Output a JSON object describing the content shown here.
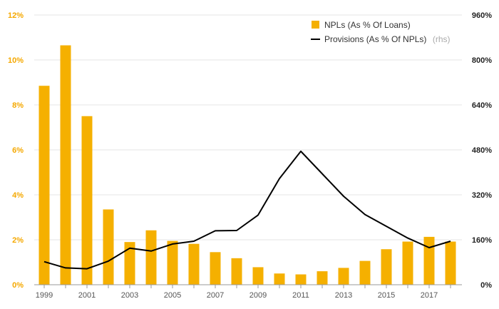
{
  "chart_data": {
    "type": "bar",
    "years": [
      1999,
      2000,
      2001,
      2002,
      2003,
      2004,
      2005,
      2006,
      2007,
      2008,
      2009,
      2010,
      2011,
      2012,
      2013,
      2014,
      2015,
      2016,
      2017,
      2018
    ],
    "x_tick_labels": [
      "1999",
      "2001",
      "2003",
      "2005",
      "2007",
      "2009",
      "2011",
      "2013",
      "2015",
      "2017"
    ],
    "series": [
      {
        "name": "NPLs (As % Of Loans)",
        "type": "bar",
        "axis": "left",
        "color": "#f5b000",
        "values": [
          8.85,
          10.65,
          7.5,
          3.35,
          1.9,
          2.42,
          1.95,
          1.82,
          1.45,
          1.18,
          0.78,
          0.5,
          0.46,
          0.6,
          0.75,
          1.06,
          1.58,
          1.92,
          2.13,
          1.92
        ]
      },
      {
        "name": "Provisions (As % Of NPLs)",
        "name_suffix": "(rhs)",
        "type": "line",
        "axis": "right",
        "color": "#000000",
        "values": [
          82,
          60,
          57,
          84,
          130,
          120,
          145,
          155,
          192,
          193,
          248,
          378,
          475,
          395,
          315,
          250,
          208,
          166,
          132,
          155
        ]
      }
    ],
    "y_left": {
      "ylim": [
        0,
        12
      ],
      "ticks": [
        0,
        2,
        4,
        6,
        8,
        10,
        12
      ],
      "tick_labels": [
        "0%",
        "2%",
        "4%",
        "6%",
        "8%",
        "10%",
        "12%"
      ],
      "color": "#f5a800"
    },
    "y_right": {
      "ylim": [
        0,
        960
      ],
      "ticks": [
        0,
        160,
        320,
        480,
        640,
        800,
        960
      ],
      "tick_labels": [
        "0%",
        "160%",
        "320%",
        "480%",
        "640%",
        "800%",
        "960%"
      ],
      "color": "#222222"
    },
    "grid": true,
    "legend_position": "top-right"
  }
}
